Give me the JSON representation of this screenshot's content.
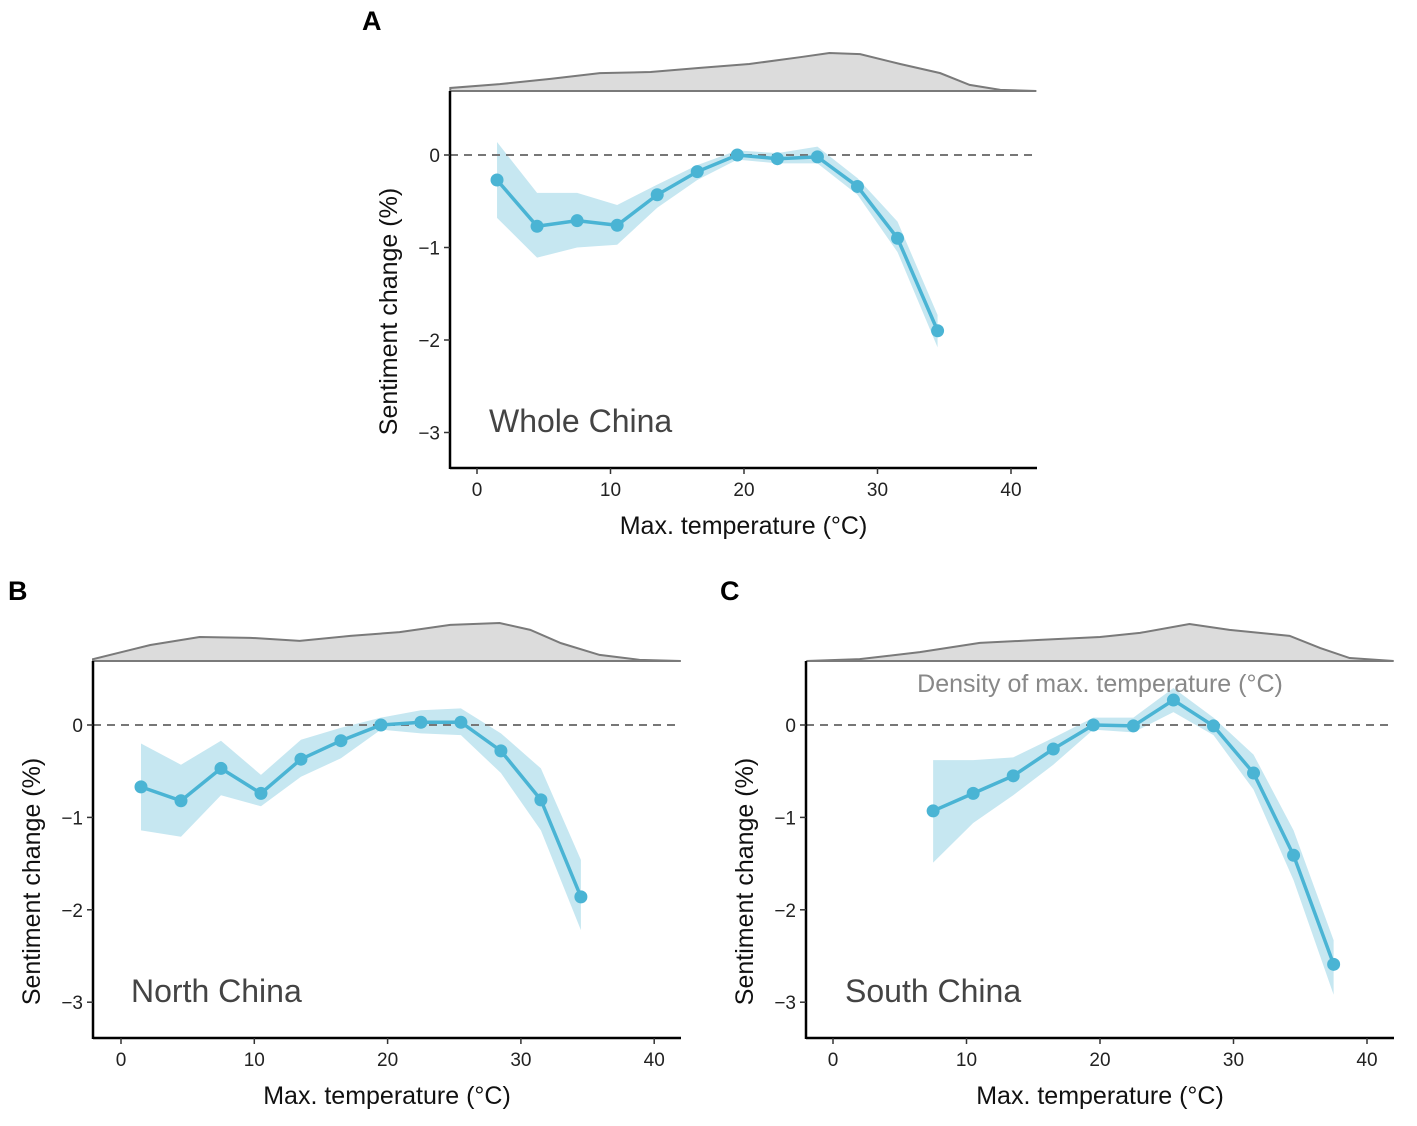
{
  "chart_data": [
    {
      "type": "line",
      "panel_label": "A",
      "region_label": "Whole China",
      "xlabel": "Max. temperature (°C)",
      "ylabel": "Sentiment change (%)",
      "xticks": [
        0,
        10,
        20,
        30,
        40
      ],
      "xtick_labels": [
        "0",
        "10",
        "20",
        "30",
        "40"
      ],
      "yticks": [
        0,
        -1,
        -2,
        -3
      ],
      "ytick_labels": [
        "0",
        "−1",
        "−2",
        "−3"
      ],
      "xlim": [
        -2,
        42
      ],
      "ylim": [
        -3.35,
        0.7
      ],
      "reference_line": 0,
      "color": "#4ab4d4",
      "ci_color": "#c6e7f1",
      "x": [
        1.5,
        4.5,
        7.5,
        10.5,
        13.5,
        16.5,
        19.5,
        22.5,
        25.5,
        28.5,
        31.5,
        34.5
      ],
      "y": [
        -0.27,
        -0.77,
        -0.71,
        -0.76,
        -0.43,
        -0.18,
        0,
        -0.04,
        -0.02,
        -0.34,
        -0.9,
        -1.9
      ],
      "ci_upper": [
        0.14,
        -0.41,
        -0.41,
        -0.54,
        -0.32,
        -0.11,
        0.05,
        0.02,
        0.09,
        -0.25,
        -0.72,
        -1.73
      ],
      "ci_lower": [
        -0.68,
        -1.11,
        -1.0,
        -0.97,
        -0.57,
        -0.27,
        -0.05,
        -0.09,
        -0.09,
        -0.43,
        -1.05,
        -2.08
      ],
      "density": {
        "x": [
          -2.0,
          1.7,
          5.5,
          9.2,
          13.0,
          16.7,
          20.4,
          24.2,
          26.4,
          28.7,
          31.7,
          34.7,
          36.9,
          39.2,
          41.9
        ],
        "y": [
          0.08,
          0.18,
          0.32,
          0.47,
          0.5,
          0.61,
          0.71,
          0.89,
          1.0,
          0.97,
          0.71,
          0.47,
          0.16,
          0.03,
          0
        ]
      }
    },
    {
      "type": "line",
      "panel_label": "B",
      "region_label": "North China",
      "xlabel": "Max. temperature (°C)",
      "ylabel": "Sentiment change (%)",
      "xticks": [
        0,
        10,
        20,
        30,
        40
      ],
      "xtick_labels": [
        "0",
        "10",
        "20",
        "30",
        "40"
      ],
      "yticks": [
        0,
        -1,
        -2,
        -3
      ],
      "ytick_labels": [
        "0",
        "−1",
        "−2",
        "−3"
      ],
      "xlim": [
        -2,
        42
      ],
      "ylim": [
        -3.35,
        0.7
      ],
      "reference_line": 0,
      "color": "#4ab4d4",
      "ci_color": "#c6e7f1",
      "x": [
        1.5,
        4.5,
        7.5,
        10.5,
        13.5,
        16.5,
        19.5,
        22.5,
        25.5,
        28.5,
        31.5,
        34.5
      ],
      "y": [
        -0.67,
        -0.82,
        -0.47,
        -0.74,
        -0.37,
        -0.17,
        0,
        0.03,
        0.03,
        -0.28,
        -0.81,
        -1.86
      ],
      "ci_upper": [
        -0.2,
        -0.43,
        -0.17,
        -0.54,
        -0.16,
        -0.03,
        0.08,
        0.16,
        0.18,
        -0.09,
        -0.47,
        -1.46
      ],
      "ci_lower": [
        -1.14,
        -1.21,
        -0.76,
        -0.88,
        -0.56,
        -0.36,
        -0.05,
        -0.09,
        -0.11,
        -0.52,
        -1.14,
        -2.22
      ],
      "density": {
        "x": [
          -2.1,
          2.2,
          5.9,
          9.7,
          13.4,
          17.2,
          20.9,
          24.7,
          28.4,
          30.7,
          33.0,
          35.9,
          38.9,
          42.0
        ],
        "y": [
          0.05,
          0.42,
          0.63,
          0.61,
          0.53,
          0.66,
          0.76,
          0.95,
          1.0,
          0.82,
          0.47,
          0.16,
          0.03,
          0
        ]
      }
    },
    {
      "type": "line",
      "panel_label": "C",
      "region_label": "South China",
      "density_label": "Density of max. temperature (°C)",
      "xlabel": "Max. temperature (°C)",
      "ylabel": "Sentiment change (%)",
      "xticks": [
        0,
        10,
        20,
        30,
        40
      ],
      "xtick_labels": [
        "0",
        "10",
        "20",
        "30",
        "40"
      ],
      "yticks": [
        0,
        -1,
        -2,
        -3
      ],
      "ytick_labels": [
        "0",
        "−1",
        "−2",
        "−3"
      ],
      "xlim": [
        -2,
        42
      ],
      "ylim": [
        -3.35,
        0.7
      ],
      "reference_line": 0,
      "color": "#4ab4d4",
      "ci_color": "#c6e7f1",
      "x": [
        7.5,
        10.5,
        13.5,
        16.5,
        19.5,
        22.5,
        25.5,
        28.5,
        31.5,
        34.5,
        37.5
      ],
      "y": [
        -0.93,
        -0.74,
        -0.55,
        -0.26,
        0,
        -0.01,
        0.27,
        -0.01,
        -0.52,
        -1.41,
        -2.59
      ],
      "ci_upper": [
        -0.38,
        -0.38,
        -0.35,
        -0.14,
        0.08,
        0.08,
        0.4,
        0.08,
        -0.32,
        -1.14,
        -2.33
      ],
      "ci_lower": [
        -1.49,
        -1.06,
        -0.76,
        -0.43,
        -0.05,
        -0.08,
        0.14,
        -0.11,
        -0.7,
        -1.68,
        -2.92
      ],
      "density": {
        "x": [
          -2.0,
          2.0,
          6.5,
          11.0,
          15.5,
          20.0,
          23.0,
          26.7,
          29.7,
          34.2,
          36.5,
          38.7,
          42.0
        ],
        "y": [
          0,
          0.05,
          0.24,
          0.49,
          0.57,
          0.65,
          0.76,
          1.0,
          0.84,
          0.68,
          0.35,
          0.08,
          0
        ]
      }
    }
  ]
}
